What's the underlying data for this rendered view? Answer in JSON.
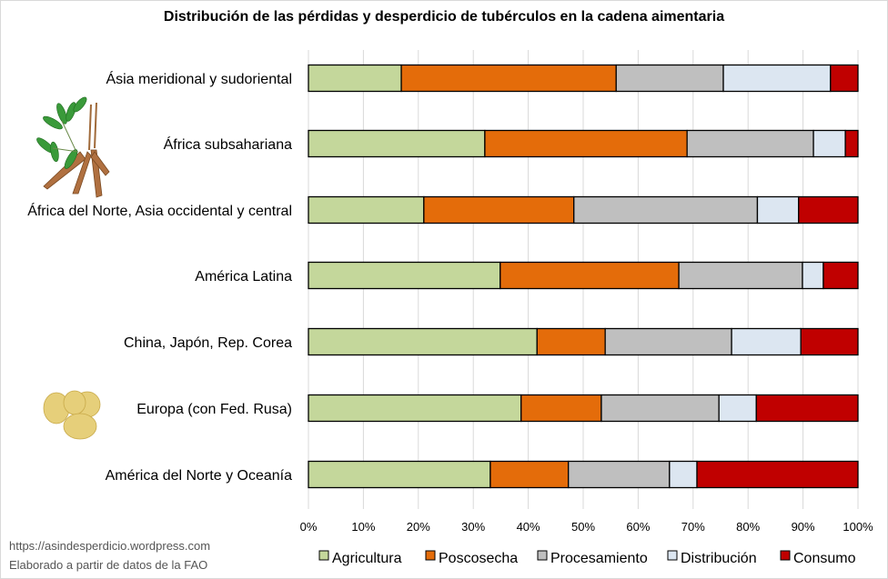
{
  "chart_data": {
    "type": "bar",
    "orientation": "horizontal",
    "stacked": "percent",
    "title": "Distribución de las pérdidas y desperdicio de tubérculos en la cadena aimentaria",
    "xlabel": "",
    "ylabel": "",
    "xlim": [
      0,
      100
    ],
    "x_ticks": [
      "0%",
      "10%",
      "20%",
      "30%",
      "40%",
      "50%",
      "60%",
      "70%",
      "80%",
      "90%",
      "100%"
    ],
    "grid": true,
    "legend_position": "bottom",
    "categories": [
      "Ásia meridional y sudoriental",
      "África subsahariana",
      "África del Norte, Asia occidental y central",
      "América Latina",
      "China, Japón, Rep. Corea",
      "Europa (con Fed. Rusa)",
      "América del Norte y Oceanía"
    ],
    "series": [
      {
        "name": "Agricultura",
        "color": "#c4d79b",
        "values": [
          16.9,
          32.1,
          21.0,
          34.9,
          41.6,
          38.7,
          33.1
        ]
      },
      {
        "name": "Poscosecha",
        "color": "#e46c0a",
        "values": [
          39.1,
          36.8,
          27.3,
          32.5,
          12.4,
          14.6,
          14.2
        ]
      },
      {
        "name": "Procesamiento",
        "color": "#bfbfbf",
        "values": [
          19.5,
          23.0,
          33.4,
          22.5,
          23.0,
          21.4,
          18.4
        ]
      },
      {
        "name": "Distribución",
        "color": "#dce6f1",
        "values": [
          19.5,
          5.8,
          7.5,
          3.8,
          12.6,
          6.8,
          5.0
        ]
      },
      {
        "name": "Consumo",
        "color": "#c00000",
        "values": [
          5.0,
          2.3,
          10.8,
          6.3,
          10.4,
          18.5,
          29.3
        ]
      }
    ]
  },
  "credits": {
    "url": "https://asindesperdicio.wordpress.com",
    "source": "Elaborado a partir de datos de la FAO"
  },
  "images": {
    "cassava": "cassava-plant-illustration",
    "potato": "potatoes-illustration"
  }
}
